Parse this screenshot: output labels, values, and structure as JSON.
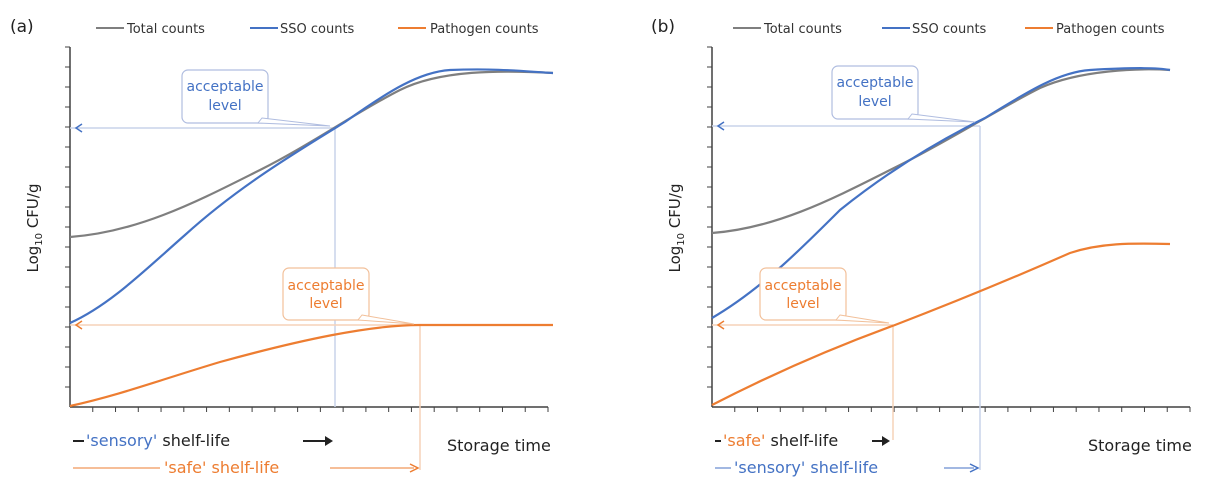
{
  "panels": [
    {
      "id": "a",
      "panel_label": "(a)",
      "legend": [
        "Total counts",
        "SSO counts",
        "Pathogen counts"
      ],
      "y_label_base": "Log",
      "y_label_sub": "10",
      "y_label_rest": " CFU/g",
      "x_label": "Storage time",
      "callout_sso": [
        "acceptable",
        "level"
      ],
      "callout_pathogen": [
        "acceptable",
        "level"
      ],
      "shelf_line1": {
        "quote": "'sensory'",
        "rest": " shelf-life"
      },
      "shelf_line2": {
        "quote": "'safe'",
        "rest": " shelf-life"
      }
    },
    {
      "id": "b",
      "panel_label": "(b)",
      "legend": [
        "Total counts",
        "SSO counts",
        "Pathogen counts"
      ],
      "y_label_base": "Log",
      "y_label_sub": "10",
      "y_label_rest": " CFU/g",
      "x_label": "Storage time",
      "callout_sso": [
        "acceptable",
        "level"
      ],
      "callout_pathogen": [
        "acceptable",
        "level"
      ],
      "shelf_line1": {
        "quote": "'safe'",
        "rest": " shelf-life"
      },
      "shelf_line2": {
        "quote": "'sensory'",
        "rest": " shelf-life"
      }
    }
  ],
  "colors": {
    "total": "#7f7f7f",
    "sso": "#4472c4",
    "pathogen": "#ed7d31",
    "axis": "#404040",
    "guide_sso": "#c9d3ea",
    "guide_pathogen": "#f6d2b8",
    "text": "#222222"
  }
}
